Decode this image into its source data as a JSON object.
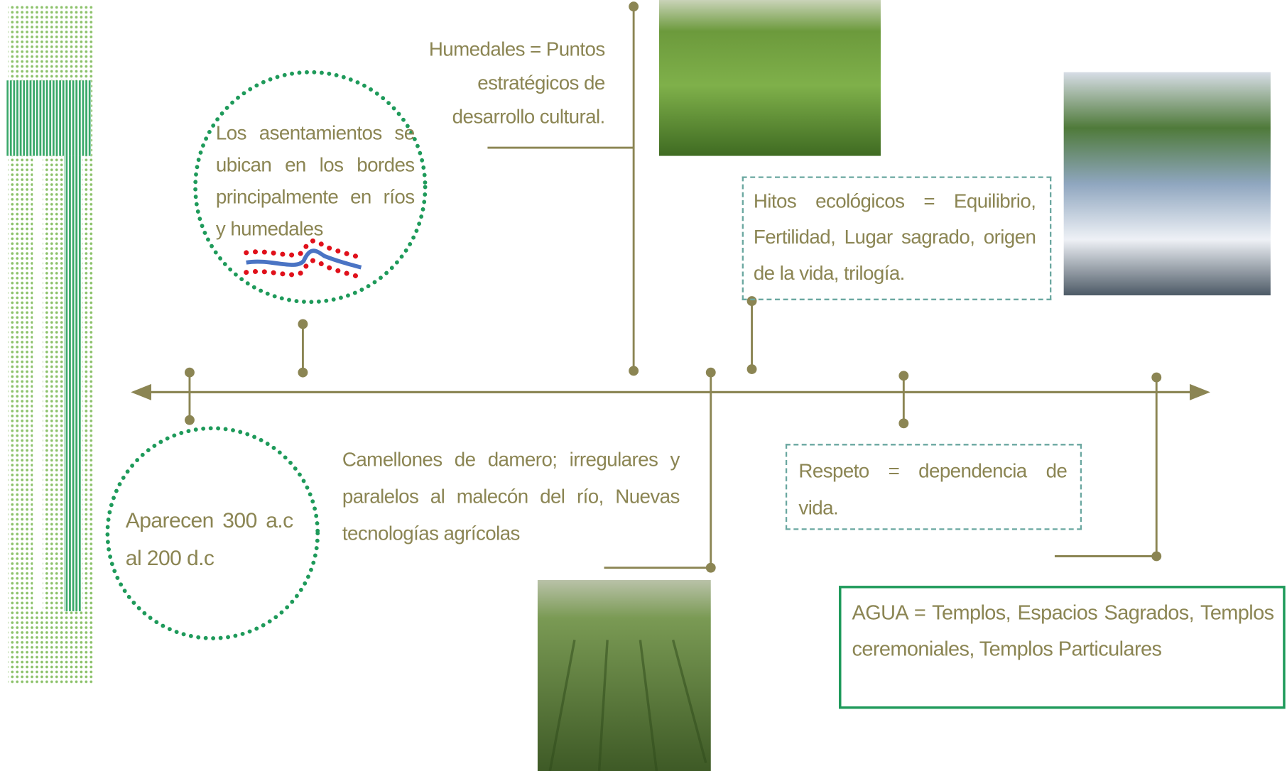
{
  "notes": [
    {
      "text": "Humedales = Puntos estratégicos de desarrollo cultural."
    },
    {
      "text": "Los asentamientos se ubican en los bordes principalmente en ríos y humedales"
    },
    {
      "text": "Hitos ecológicos = Equilibrio, Fertilidad, Lugar sagrado, origen de la vida, trilogía."
    },
    {
      "text": "Aparecen 300 a.c al 200 d.c"
    },
    {
      "text": "Camellones de damero; irregulares y paralelos al malecón del río, Nuevas tecnologías agrícolas"
    },
    {
      "text": "Respeto = dependencia de vida."
    },
    {
      "text": "AGUA = Templos, Espacios Sagrados, Templos ceremoniales, Templos Particulares"
    }
  ]
}
